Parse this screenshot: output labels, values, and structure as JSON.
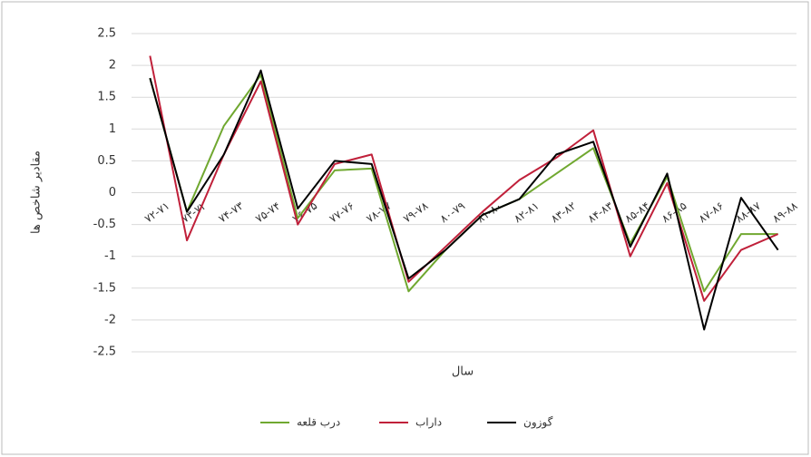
{
  "chart_data": {
    "type": "line",
    "y_label": "مقادیر شاخص ها",
    "x_label": "سال",
    "categories": [
      "۷۲-۷۱",
      "۷۳-۷۲",
      "۷۴-۷۳",
      "۷۵-۷۴",
      "۷۶-۷۵",
      "۷۷-۷۶",
      "۷۸-۷۷",
      "۷۹-۷۸",
      "۸۰-۷۹",
      "۸۱-۸۰",
      "۸۲-۸۱",
      "۸۳-۸۲",
      "۸۴-۸۳",
      "۸۵-۸۴",
      "۸۶-۸۵",
      "۸۷-۸۶",
      "۸۸-۸۷",
      "۸۹-۸۸"
    ],
    "series": [
      {
        "name": "درب قلعه",
        "color": "#70a830",
        "values": [
          1.8,
          -0.3,
          1.05,
          1.85,
          -0.4,
          0.35,
          0.38,
          -1.55,
          -0.9,
          -0.35,
          -0.1,
          0.3,
          0.7,
          -0.8,
          0.25,
          -1.55,
          -0.65,
          -0.65
        ]
      },
      {
        "name": "داراب",
        "color": "#c0203a",
        "values": [
          2.15,
          -0.75,
          0.6,
          1.75,
          -0.5,
          0.45,
          0.6,
          -1.4,
          -0.85,
          -0.3,
          0.2,
          0.55,
          0.98,
          -1.0,
          0.15,
          -1.7,
          -0.9,
          -0.65
        ]
      },
      {
        "name": "گوزون",
        "color": "#000000",
        "values": [
          1.8,
          -0.3,
          0.6,
          1.92,
          -0.25,
          0.5,
          0.45,
          -1.35,
          -0.9,
          -0.35,
          -0.1,
          0.6,
          0.8,
          -0.85,
          0.3,
          -2.15,
          -0.08,
          -0.9
        ]
      }
    ],
    "ylim": [
      -2.5,
      2.5
    ],
    "yticks": [
      2.5,
      2,
      1.5,
      1,
      0.5,
      0,
      -0.5,
      -1,
      -1.5,
      -2,
      -2.5
    ],
    "grid": true,
    "legend": "bottom"
  }
}
